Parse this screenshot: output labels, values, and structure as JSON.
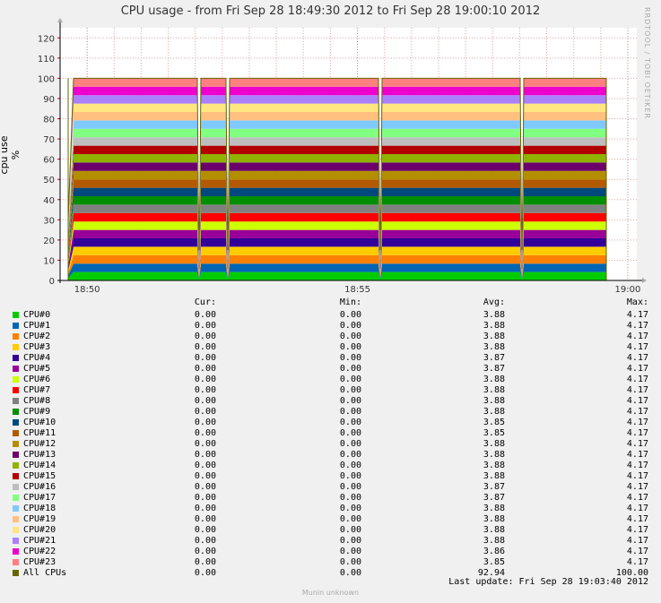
{
  "chart_data": {
    "type": "area",
    "stacked": true,
    "title": "CPU usage - from Fri Sep 28 18:49:30 2012 to Fri Sep 28 19:00:10 2012",
    "ylabel": "cpu use %",
    "ylim": [
      0,
      125
    ],
    "yticks": [
      0,
      10,
      20,
      30,
      40,
      50,
      60,
      70,
      80,
      90,
      100,
      110,
      120
    ],
    "xticks": [
      "18:50",
      "18:55",
      "19:00"
    ],
    "grid": true,
    "legend_columns": [
      "Cur:",
      "Min:",
      "Avg:",
      "Max:"
    ],
    "series": [
      {
        "name": "CPU#0",
        "color": "#00cc00",
        "cur": "0.00",
        "min": "0.00",
        "avg": "3.88",
        "max": "4.17"
      },
      {
        "name": "CPU#1",
        "color": "#0066b3",
        "cur": "0.00",
        "min": "0.00",
        "avg": "3.88",
        "max": "4.17"
      },
      {
        "name": "CPU#2",
        "color": "#ff8000",
        "cur": "0.00",
        "min": "0.00",
        "avg": "3.88",
        "max": "4.17"
      },
      {
        "name": "CPU#3",
        "color": "#ffcc00",
        "cur": "0.00",
        "min": "0.00",
        "avg": "3.88",
        "max": "4.17"
      },
      {
        "name": "CPU#4",
        "color": "#330099",
        "cur": "0.00",
        "min": "0.00",
        "avg": "3.87",
        "max": "4.17"
      },
      {
        "name": "CPU#5",
        "color": "#990099",
        "cur": "0.00",
        "min": "0.00",
        "avg": "3.87",
        "max": "4.17"
      },
      {
        "name": "CPU#6",
        "color": "#ccff00",
        "cur": "0.00",
        "min": "0.00",
        "avg": "3.88",
        "max": "4.17"
      },
      {
        "name": "CPU#7",
        "color": "#ff0000",
        "cur": "0.00",
        "min": "0.00",
        "avg": "3.88",
        "max": "4.17"
      },
      {
        "name": "CPU#8",
        "color": "#808080",
        "cur": "0.00",
        "min": "0.00",
        "avg": "3.88",
        "max": "4.17"
      },
      {
        "name": "CPU#9",
        "color": "#008f00",
        "cur": "0.00",
        "min": "0.00",
        "avg": "3.88",
        "max": "4.17"
      },
      {
        "name": "CPU#10",
        "color": "#00487d",
        "cur": "0.00",
        "min": "0.00",
        "avg": "3.85",
        "max": "4.17"
      },
      {
        "name": "CPU#11",
        "color": "#b35a00",
        "cur": "0.00",
        "min": "0.00",
        "avg": "3.85",
        "max": "4.17"
      },
      {
        "name": "CPU#12",
        "color": "#b38f00",
        "cur": "0.00",
        "min": "0.00",
        "avg": "3.88",
        "max": "4.17"
      },
      {
        "name": "CPU#13",
        "color": "#6b006b",
        "cur": "0.00",
        "min": "0.00",
        "avg": "3.88",
        "max": "4.17"
      },
      {
        "name": "CPU#14",
        "color": "#8fb300",
        "cur": "0.00",
        "min": "0.00",
        "avg": "3.88",
        "max": "4.17"
      },
      {
        "name": "CPU#15",
        "color": "#b30000",
        "cur": "0.00",
        "min": "0.00",
        "avg": "3.88",
        "max": "4.17"
      },
      {
        "name": "CPU#16",
        "color": "#bebebe",
        "cur": "0.00",
        "min": "0.00",
        "avg": "3.87",
        "max": "4.17"
      },
      {
        "name": "CPU#17",
        "color": "#80ff80",
        "cur": "0.00",
        "min": "0.00",
        "avg": "3.87",
        "max": "4.17"
      },
      {
        "name": "CPU#18",
        "color": "#80c9ff",
        "cur": "0.00",
        "min": "0.00",
        "avg": "3.88",
        "max": "4.17"
      },
      {
        "name": "CPU#19",
        "color": "#ffc080",
        "cur": "0.00",
        "min": "0.00",
        "avg": "3.88",
        "max": "4.17"
      },
      {
        "name": "CPU#20",
        "color": "#ffe680",
        "cur": "0.00",
        "min": "0.00",
        "avg": "3.88",
        "max": "4.17"
      },
      {
        "name": "CPU#21",
        "color": "#aa80ff",
        "cur": "0.00",
        "min": "0.00",
        "avg": "3.88",
        "max": "4.17"
      },
      {
        "name": "CPU#22",
        "color": "#ee00cc",
        "cur": "0.00",
        "min": "0.00",
        "avg": "3.86",
        "max": "4.17"
      },
      {
        "name": "CPU#23",
        "color": "#ff8080",
        "cur": "0.00",
        "min": "0.00",
        "avg": "3.85",
        "max": "4.17"
      },
      {
        "name": "All CPUs",
        "color": "#666600",
        "cur": "0.00",
        "min": "0.00",
        "avg": "92.94",
        "max": "100.00"
      }
    ]
  },
  "last_update": "Last update: Fri Sep 28 19:03:40 2012",
  "side_credit": "RRDTOOL / TOBI OETIKER",
  "footer": "Munin unknown"
}
